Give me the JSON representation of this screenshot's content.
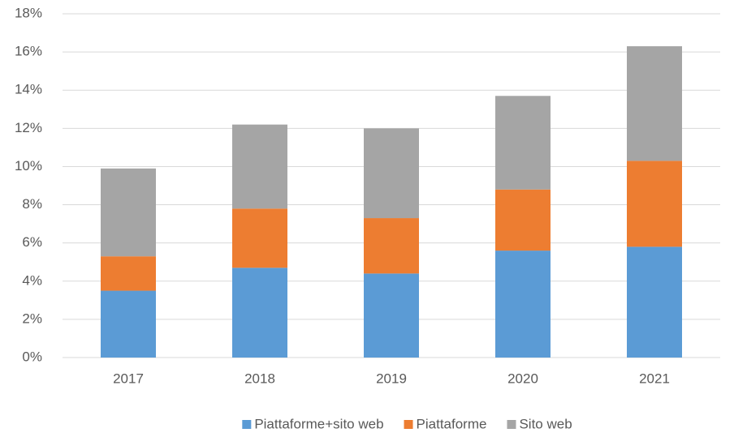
{
  "chart_data": {
    "type": "bar",
    "stacked": true,
    "categories": [
      "2017",
      "2018",
      "2019",
      "2020",
      "2021"
    ],
    "series": [
      {
        "name": "Piattaforme+sito web",
        "color": "#5b9bd5",
        "values": [
          3.5,
          4.7,
          4.4,
          5.6,
          5.8
        ]
      },
      {
        "name": "Piattaforme",
        "color": "#ed7d31",
        "values": [
          1.8,
          3.1,
          2.9,
          3.2,
          4.5
        ]
      },
      {
        "name": "Sito web",
        "color": "#a5a5a5",
        "values": [
          4.6,
          4.4,
          4.7,
          4.9,
          6.0
        ]
      }
    ],
    "ylim": [
      0,
      18
    ],
    "yticks": [
      {
        "value": 0,
        "label": "0%"
      },
      {
        "value": 2,
        "label": "2%"
      },
      {
        "value": 4,
        "label": "4%"
      },
      {
        "value": 6,
        "label": "6%"
      },
      {
        "value": 8,
        "label": "8%"
      },
      {
        "value": 10,
        "label": "10%"
      },
      {
        "value": 12,
        "label": "12%"
      },
      {
        "value": 14,
        "label": "14%"
      },
      {
        "value": 16,
        "label": "16%"
      },
      {
        "value": 18,
        "label": "18%"
      }
    ],
    "grid": true,
    "legend": "bottom"
  }
}
